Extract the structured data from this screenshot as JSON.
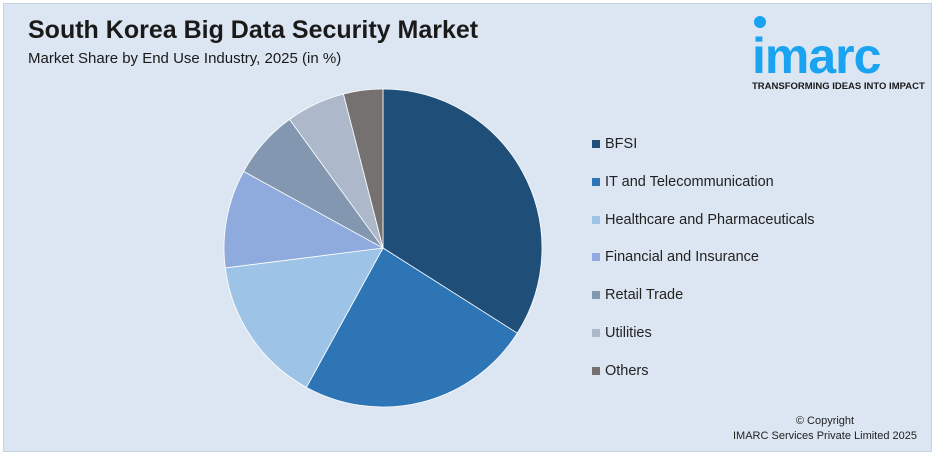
{
  "chart_data": {
    "type": "pie",
    "title": "South Korea Big Data Security Market",
    "subtitle": "Market Share by End Use Industry, 2025 (in %)",
    "categories": [
      "BFSI",
      "IT and Telecommunication",
      "Healthcare and Pharmaceuticals",
      "Financial and Insurance",
      "Retail Trade",
      "Utilities",
      "Others"
    ],
    "values": [
      34,
      24,
      15,
      10,
      7,
      6,
      4
    ],
    "colors": [
      "#1f4e79",
      "#2e75b6",
      "#9dc3e6",
      "#8faadc",
      "#8497b0",
      "#adb9ca",
      "#767171"
    ],
    "start_angle": "12 o'clock, clockwise",
    "legend_placement": "right"
  },
  "logo": {
    "word": "imarc",
    "tagline": "TRANSFORMING IDEAS INTO IMPACT",
    "color": "#1aa3f0"
  },
  "copyright": {
    "line1": "© Copyright",
    "line2": "IMARC Services Private Limited 2025"
  }
}
